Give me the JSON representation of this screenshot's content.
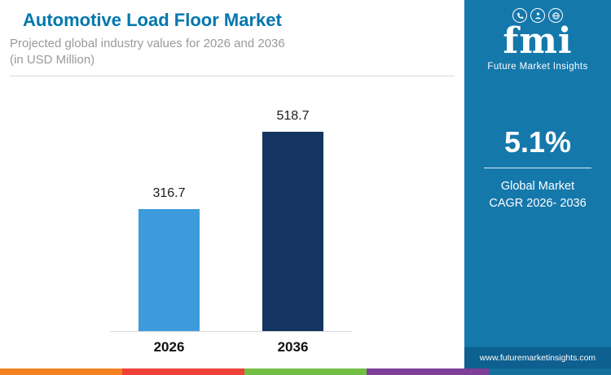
{
  "header": {
    "title": "Automotive Load Floor Market",
    "subtitle_line1": "Projected global industry values for 2026 and 2036",
    "subtitle_line2": "(in USD Million)"
  },
  "chart_data": {
    "type": "bar",
    "title": "Automotive Load Floor Market",
    "subtitle": "Projected global industry values for 2026 and 2036 (in USD Million)",
    "categories": [
      "2026",
      "2036"
    ],
    "values": [
      316.7,
      518.7
    ],
    "unit": "USD Million",
    "ylim": [
      0,
      560
    ],
    "bar_colors": [
      "#3D9BDB",
      "#14355F"
    ],
    "grid": false,
    "legend": false
  },
  "sidebar": {
    "logo_text": "fmi",
    "brand_name": "Future Market Insights",
    "icons": [
      "phone-icon",
      "person-icon",
      "globe-icon"
    ],
    "cagr_value": "5.1%",
    "cagr_label_line1": "Global Market",
    "cagr_label_line2": "CAGR 2026- 2036",
    "website": "www.futuremarketinsights.com"
  },
  "theme": {
    "title_color": "#0077AD",
    "sidebar_bg": "#1578AB",
    "website_bar_bg": "#0D608F",
    "strip_colors": [
      "#F58220",
      "#EF4136",
      "#72BF44",
      "#7E3F98",
      "#156F9B"
    ]
  }
}
